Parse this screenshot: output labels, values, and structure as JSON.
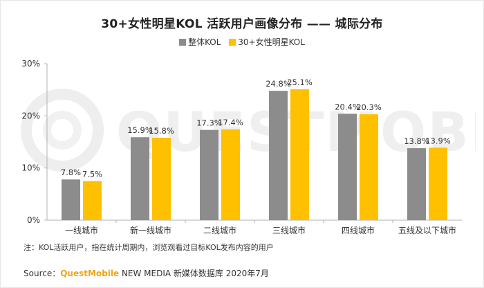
{
  "source": {
    "prefix": "Source：",
    "brand": "QuestMobile",
    "rest": " NEW MEDIA 新媒体数据库 2020年7月"
  },
  "note": "注：KOL活跃用户，指在统计周期内，浏览观看过目标KOL发布内容的用户",
  "watermark": "QUESTMOBILE",
  "colors": {
    "series_total": "#8c8c8c",
    "series_kol": "#ffc000",
    "axis": "#b0b0b0",
    "text": "#333333"
  },
  "chart_data": {
    "type": "bar",
    "title": "30+女性明星KOL 活跃用户画像分布 —— 城际分布",
    "categories": [
      "一线城市",
      "新一线城市",
      "二线城市",
      "三线城市",
      "四线城市",
      "五线及以下城市"
    ],
    "series": [
      {
        "name": "整体KOL",
        "values": [
          7.8,
          15.9,
          17.3,
          24.8,
          20.4,
          13.8
        ],
        "labels": [
          "7.8%",
          "15.9%",
          "17.3%",
          "24.8%",
          "20.4%",
          "13.8%"
        ]
      },
      {
        "name": "30+女性明星KOL",
        "values": [
          7.5,
          15.8,
          17.4,
          25.1,
          20.3,
          13.9
        ],
        "labels": [
          "7.5%",
          "15.8%",
          "17.4%",
          "25.1%",
          "20.3%",
          "13.9%"
        ]
      }
    ],
    "yticks": [
      0,
      10,
      20,
      30
    ],
    "ytick_labels": [
      "0%",
      "10%",
      "20%",
      "30%"
    ],
    "ylim": [
      0,
      30
    ],
    "xlabel": "",
    "ylabel": "",
    "grid": false,
    "legend": "top-center"
  }
}
